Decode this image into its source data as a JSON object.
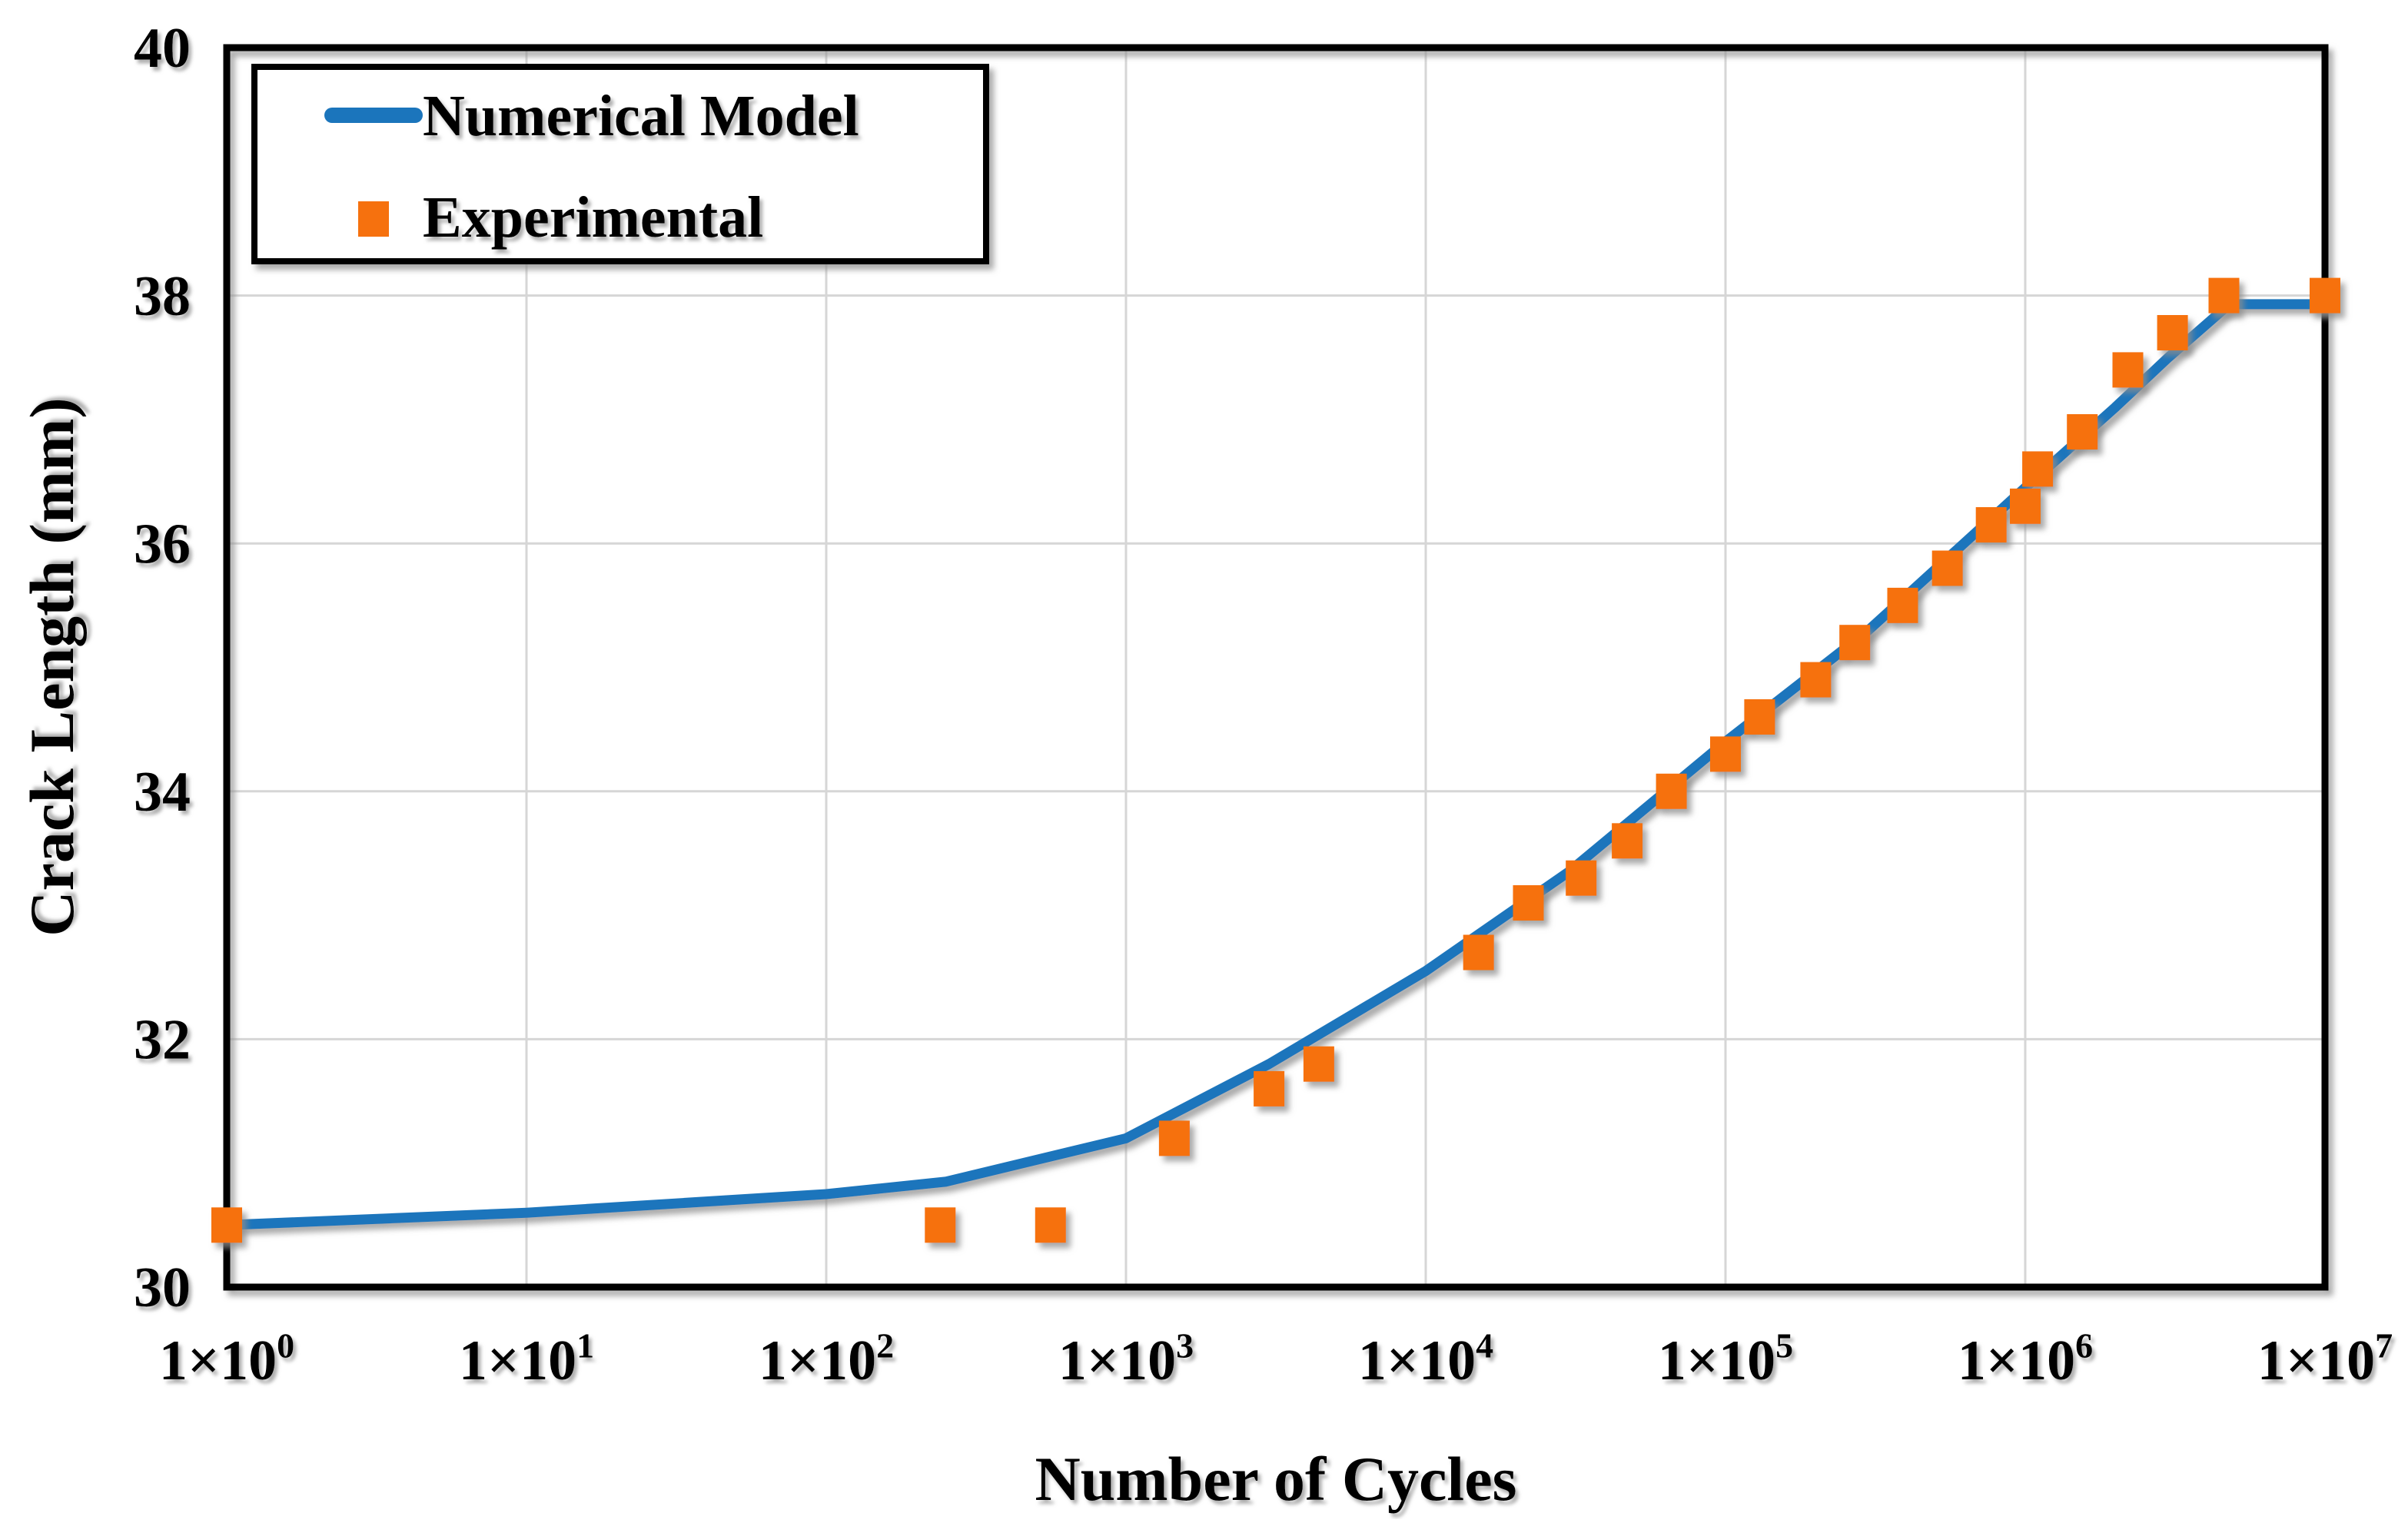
{
  "figure": {
    "background_color": "#ffffff",
    "text_color": "#000000"
  },
  "chart_data": {
    "type": "line",
    "title": "",
    "xlabel": "Number of Cycles",
    "ylabel": "Crack Length (mm)",
    "x_scale": "log",
    "x_range": [
      1,
      10000000
    ],
    "y_range": [
      30,
      40
    ],
    "grid": "on",
    "grid_color": "#d6d6d6",
    "border_color": "#000000",
    "x_tick_base": "1×10",
    "x_tick_exponents": [
      0,
      1,
      2,
      3,
      4,
      5,
      6,
      7
    ],
    "y_tick_labels": [
      "30",
      "32",
      "34",
      "36",
      "38",
      "40"
    ],
    "y_tick_values": [
      30,
      32,
      34,
      36,
      38,
      40
    ],
    "y_gridline_values": [
      32,
      34,
      36,
      38
    ],
    "legend": {
      "position": "top-left"
    },
    "series": [
      {
        "name": "Numerical Model",
        "type": "line",
        "color": "#1b75bc",
        "points": [
          [
            1,
            30.5
          ],
          [
            10,
            30.6
          ],
          [
            100,
            30.75
          ],
          [
            250,
            30.85
          ],
          [
            1000,
            31.2
          ],
          [
            3000,
            31.8
          ],
          [
            10000,
            32.55
          ],
          [
            30000,
            33.35
          ],
          [
            100000,
            34.4
          ],
          [
            300000,
            35.3
          ],
          [
            1000000,
            36.45
          ],
          [
            2000000,
            37.1
          ],
          [
            3000000,
            37.5
          ],
          [
            4800000,
            37.93
          ],
          [
            10000000,
            37.93
          ]
        ]
      },
      {
        "name": "Experimental",
        "type": "scatter",
        "marker": "square",
        "color": "#f6710e",
        "points": [
          [
            1,
            30.5
          ],
          [
            240,
            30.5
          ],
          [
            560,
            30.5
          ],
          [
            1450,
            31.2
          ],
          [
            3000,
            31.6
          ],
          [
            4400,
            31.8
          ],
          [
            15000,
            32.7
          ],
          [
            22000,
            33.1
          ],
          [
            33000,
            33.3
          ],
          [
            47000,
            33.6
          ],
          [
            66000,
            34.0
          ],
          [
            100000,
            34.3
          ],
          [
            130000,
            34.6
          ],
          [
            200000,
            34.9
          ],
          [
            270000,
            35.2
          ],
          [
            390000,
            35.5
          ],
          [
            550000,
            35.8
          ],
          [
            770000,
            36.15
          ],
          [
            1000000,
            36.3
          ],
          [
            1100000,
            36.6
          ],
          [
            1550000,
            36.9
          ],
          [
            2200000,
            37.4
          ],
          [
            3100000,
            37.7
          ],
          [
            4600000,
            38.0
          ],
          [
            10000000,
            38.0
          ]
        ]
      }
    ]
  }
}
